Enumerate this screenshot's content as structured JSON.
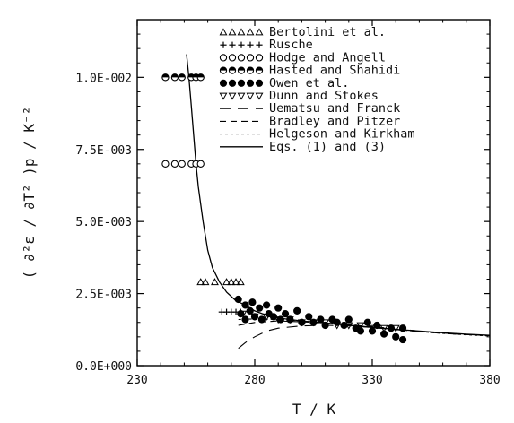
{
  "chart_data": {
    "type": "scatter",
    "title": "",
    "xlabel": "T / K",
    "ylabel": "( ∂²ε / ∂T² )p / K⁻²",
    "xlim": [
      230,
      380
    ],
    "ylim": [
      0,
      0.012
    ],
    "x_ticks": [
      "230",
      "280",
      "330",
      "380"
    ],
    "x_tick_values": [
      230,
      280,
      330,
      380
    ],
    "y_ticks": [
      "0.0E+000",
      "2.5E-003",
      "5.0E-003",
      "7.5E-003",
      "1.0E-002"
    ],
    "y_tick_values": [
      0,
      0.0025,
      0.005,
      0.0075,
      0.01
    ],
    "legend_position": "top-right",
    "series": [
      {
        "name": "Bertolini et al.",
        "marker": "triangle",
        "legend_symbol": "△△△△△",
        "points": [
          [
            257,
            0.0029
          ],
          [
            259,
            0.0029
          ],
          [
            263,
            0.0029
          ],
          [
            268,
            0.0029
          ],
          [
            270,
            0.0029
          ],
          [
            272,
            0.0029
          ],
          [
            274,
            0.0029
          ]
        ]
      },
      {
        "name": "Rusche",
        "marker": "plus",
        "legend_symbol": "+++++",
        "points": [
          [
            266,
            0.00186
          ],
          [
            268,
            0.00186
          ],
          [
            270,
            0.00186
          ],
          [
            272,
            0.00186
          ],
          [
            274,
            0.00186
          ]
        ]
      },
      {
        "name": "Hodge and Angell",
        "marker": "open-circle",
        "legend_symbol": "○○○○○",
        "points": [
          [
            242,
            0.007
          ],
          [
            246,
            0.007
          ],
          [
            249,
            0.007
          ],
          [
            253,
            0.007
          ],
          [
            255,
            0.007
          ],
          [
            257,
            0.007
          ]
        ]
      },
      {
        "name": "Hasted and Shahidi",
        "marker": "half-circle",
        "legend_symbol": "◒◒◒◒◒",
        "points": [
          [
            242,
            0.01
          ],
          [
            246,
            0.01
          ],
          [
            249,
            0.01
          ],
          [
            253,
            0.01
          ],
          [
            255,
            0.01
          ],
          [
            257,
            0.01
          ]
        ]
      },
      {
        "name": "Owen et al.",
        "marker": "filled-circle",
        "legend_symbol": "●●●●●",
        "points": [
          [
            273,
            0.0023
          ],
          [
            274,
            0.0018
          ],
          [
            276,
            0.0021
          ],
          [
            276,
            0.0016
          ],
          [
            278,
            0.0019
          ],
          [
            279,
            0.0022
          ],
          [
            280,
            0.0017
          ],
          [
            282,
            0.002
          ],
          [
            283,
            0.0016
          ],
          [
            285,
            0.0021
          ],
          [
            286,
            0.0018
          ],
          [
            288,
            0.0017
          ],
          [
            290,
            0.002
          ],
          [
            291,
            0.0016
          ],
          [
            293,
            0.0018
          ],
          [
            295,
            0.0016
          ],
          [
            298,
            0.0019
          ],
          [
            300,
            0.0015
          ],
          [
            303,
            0.0017
          ],
          [
            305,
            0.0015
          ],
          [
            308,
            0.0016
          ],
          [
            310,
            0.0014
          ],
          [
            313,
            0.0016
          ],
          [
            315,
            0.0015
          ],
          [
            318,
            0.0014
          ],
          [
            320,
            0.0016
          ],
          [
            323,
            0.0013
          ],
          [
            325,
            0.0012
          ],
          [
            328,
            0.0015
          ],
          [
            330,
            0.0012
          ],
          [
            332,
            0.0014
          ],
          [
            335,
            0.0011
          ],
          [
            338,
            0.0013
          ],
          [
            340,
            0.001
          ],
          [
            343,
            0.0013
          ],
          [
            343,
            0.0009
          ]
        ]
      },
      {
        "name": "Dunn and Stokes",
        "marker": "down-triangle",
        "legend_symbol": "▽▽▽▽▽",
        "points": [
          [
            275,
            0.0018
          ],
          [
            280,
            0.0017
          ],
          [
            285,
            0.0017
          ],
          [
            290,
            0.0016
          ],
          [
            295,
            0.0016
          ],
          [
            300,
            0.0015
          ],
          [
            305,
            0.0015
          ],
          [
            310,
            0.0015
          ],
          [
            315,
            0.0014
          ],
          [
            320,
            0.0014
          ],
          [
            325,
            0.0014
          ],
          [
            330,
            0.0013
          ],
          [
            335,
            0.0013
          ],
          [
            340,
            0.0013
          ]
        ]
      },
      {
        "name": "Uematsu and Franck",
        "line": "long-dash",
        "legend_symbol": "—  —",
        "points": [
          [
            273,
            0.0006
          ],
          [
            276,
            0.0008
          ],
          [
            280,
            0.001
          ],
          [
            285,
            0.0012
          ],
          [
            290,
            0.0013
          ],
          [
            300,
            0.00138
          ],
          [
            310,
            0.0014
          ],
          [
            320,
            0.00138
          ],
          [
            330,
            0.00132
          ],
          [
            340,
            0.00125
          ],
          [
            350,
            0.00118
          ],
          [
            360,
            0.00112
          ],
          [
            370,
            0.00108
          ],
          [
            380,
            0.00105
          ]
        ]
      },
      {
        "name": "Bradley and Pitzer",
        "line": "dash",
        "legend_symbol": "— —",
        "points": [
          [
            273,
            0.0014
          ],
          [
            280,
            0.0015
          ],
          [
            290,
            0.00155
          ],
          [
            300,
            0.00152
          ],
          [
            310,
            0.00148
          ],
          [
            320,
            0.00142
          ],
          [
            330,
            0.00135
          ],
          [
            340,
            0.00128
          ],
          [
            350,
            0.0012
          ],
          [
            360,
            0.00113
          ],
          [
            370,
            0.00108
          ],
          [
            380,
            0.00104
          ]
        ]
      },
      {
        "name": "Helgeson and Kirkham",
        "line": "short-dash",
        "legend_symbol": "- - - -",
        "points": [
          [
            273,
            0.0016
          ],
          [
            280,
            0.00162
          ],
          [
            290,
            0.0016
          ],
          [
            300,
            0.00155
          ],
          [
            310,
            0.00148
          ],
          [
            320,
            0.0014
          ],
          [
            330,
            0.00133
          ],
          [
            340,
            0.00125
          ],
          [
            350,
            0.00118
          ],
          [
            360,
            0.00112
          ],
          [
            370,
            0.00107
          ],
          [
            380,
            0.00103
          ]
        ]
      },
      {
        "name": "Eqs. (1) and (3)",
        "line": "solid",
        "legend_symbol": "——",
        "points": [
          [
            251,
            0.0108
          ],
          [
            252,
            0.01
          ],
          [
            253,
            0.009
          ],
          [
            254,
            0.008
          ],
          [
            255,
            0.007
          ],
          [
            256,
            0.0062
          ],
          [
            258,
            0.005
          ],
          [
            260,
            0.004
          ],
          [
            262,
            0.0034
          ],
          [
            265,
            0.0029
          ],
          [
            268,
            0.00255
          ],
          [
            272,
            0.00225
          ],
          [
            276,
            0.0021
          ],
          [
            280,
            0.0019
          ],
          [
            285,
            0.00175
          ],
          [
            290,
            0.00165
          ],
          [
            300,
            0.00155
          ],
          [
            310,
            0.00148
          ],
          [
            320,
            0.0014
          ],
          [
            330,
            0.00133
          ],
          [
            340,
            0.00126
          ],
          [
            350,
            0.0012
          ],
          [
            360,
            0.00114
          ],
          [
            370,
            0.00109
          ],
          [
            380,
            0.00105
          ]
        ]
      }
    ]
  }
}
